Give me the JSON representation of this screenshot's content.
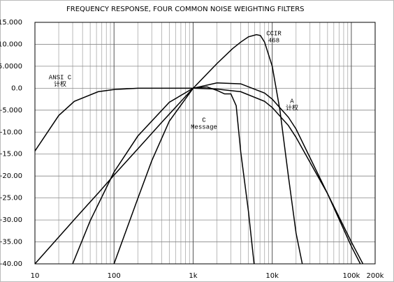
{
  "chart_data": {
    "type": "line",
    "title": "FREQUENCY RESPONSE, FOUR COMMON NOISE WEIGHTING FILTERS",
    "log_x": true,
    "grid": true,
    "xlim": [
      10,
      200000
    ],
    "ylim": [
      -40,
      15
    ],
    "xticks": [
      10,
      100,
      {
        "value": 1000,
        "label": "1k"
      },
      {
        "value": 10000,
        "label": "10k"
      },
      {
        "value": 100000,
        "label": "100k"
      },
      {
        "value": 200000,
        "label": "200k"
      }
    ],
    "xgrid": [
      20,
      30,
      40,
      50,
      60,
      70,
      80,
      90,
      200,
      300,
      400,
      500,
      600,
      700,
      800,
      900,
      2000,
      3000,
      4000,
      5000,
      6000,
      7000,
      8000,
      9000,
      20000,
      30000,
      40000,
      50000,
      60000,
      70000,
      80000,
      90000
    ],
    "yticks": [
      {
        "value": 15,
        "label": "15.000"
      },
      {
        "value": 10,
        "label": "10.000"
      },
      {
        "value": 5,
        "label": "5.0000"
      },
      {
        "value": 0,
        "label": "0.0"
      },
      {
        "value": -5,
        "label": "-5.000"
      },
      {
        "value": -10,
        "label": "-10.00"
      },
      {
        "value": -15,
        "label": "-15.00"
      },
      {
        "value": -20,
        "label": "-20.00"
      },
      {
        "value": -25,
        "label": "-25.00"
      },
      {
        "value": -30,
        "label": "-30.00"
      },
      {
        "value": -35,
        "label": "-35.00"
      },
      {
        "value": -40,
        "label": "-40.00"
      }
    ],
    "series": [
      {
        "label": [
          "ANSI C",
          "计权"
        ],
        "color": "#000000",
        "x": [
          10,
          20,
          31.5,
          63,
          100,
          200,
          1000,
          2000,
          4000,
          8000,
          10000,
          16000,
          20000,
          50000,
          100000,
          140000
        ],
        "values": [
          -14.3,
          -6.2,
          -3.0,
          -0.8,
          -0.3,
          0,
          0,
          -0.2,
          -0.8,
          -3.0,
          -4.4,
          -8.5,
          -11.2,
          -24,
          -35,
          -40
        ]
      },
      {
        "label": [
          "CCIR",
          "468"
        ],
        "color": "#000000",
        "x": [
          10,
          31.5,
          63,
          100,
          200,
          400,
          800,
          1000,
          2000,
          3150,
          4000,
          5000,
          6300,
          7100,
          8000,
          10000,
          12500,
          16000,
          20000,
          24000
        ],
        "values": [
          -40,
          -29.9,
          -23.9,
          -19.8,
          -13.8,
          -7.8,
          -1.9,
          0,
          5.6,
          9.0,
          10.5,
          11.7,
          12.2,
          12.0,
          10.5,
          5,
          -5,
          -20,
          -33,
          -40
        ]
      },
      {
        "label": [
          "A",
          "计权"
        ],
        "color": "#000000",
        "x": [
          30,
          50,
          100,
          200,
          500,
          1000,
          2000,
          4000,
          8000,
          10000,
          16000,
          20000,
          50000,
          100000,
          130000
        ],
        "values": [
          -40,
          -30.2,
          -19.1,
          -10.9,
          -3.2,
          0,
          1.2,
          1.0,
          -1.1,
          -2.5,
          -6.6,
          -9.3,
          -24,
          -36,
          -40
        ]
      },
      {
        "label": [
          "C",
          "Message"
        ],
        "color": "#000000",
        "x": [
          100,
          200,
          300,
          500,
          1000,
          1500,
          2000,
          2500,
          3000,
          3500,
          4000,
          5000,
          5900
        ],
        "values": [
          -40,
          -25.1,
          -16.5,
          -7.5,
          0,
          0.3,
          -0.5,
          -1.3,
          -1.3,
          -4,
          -14.5,
          -28,
          -40
        ]
      }
    ]
  }
}
